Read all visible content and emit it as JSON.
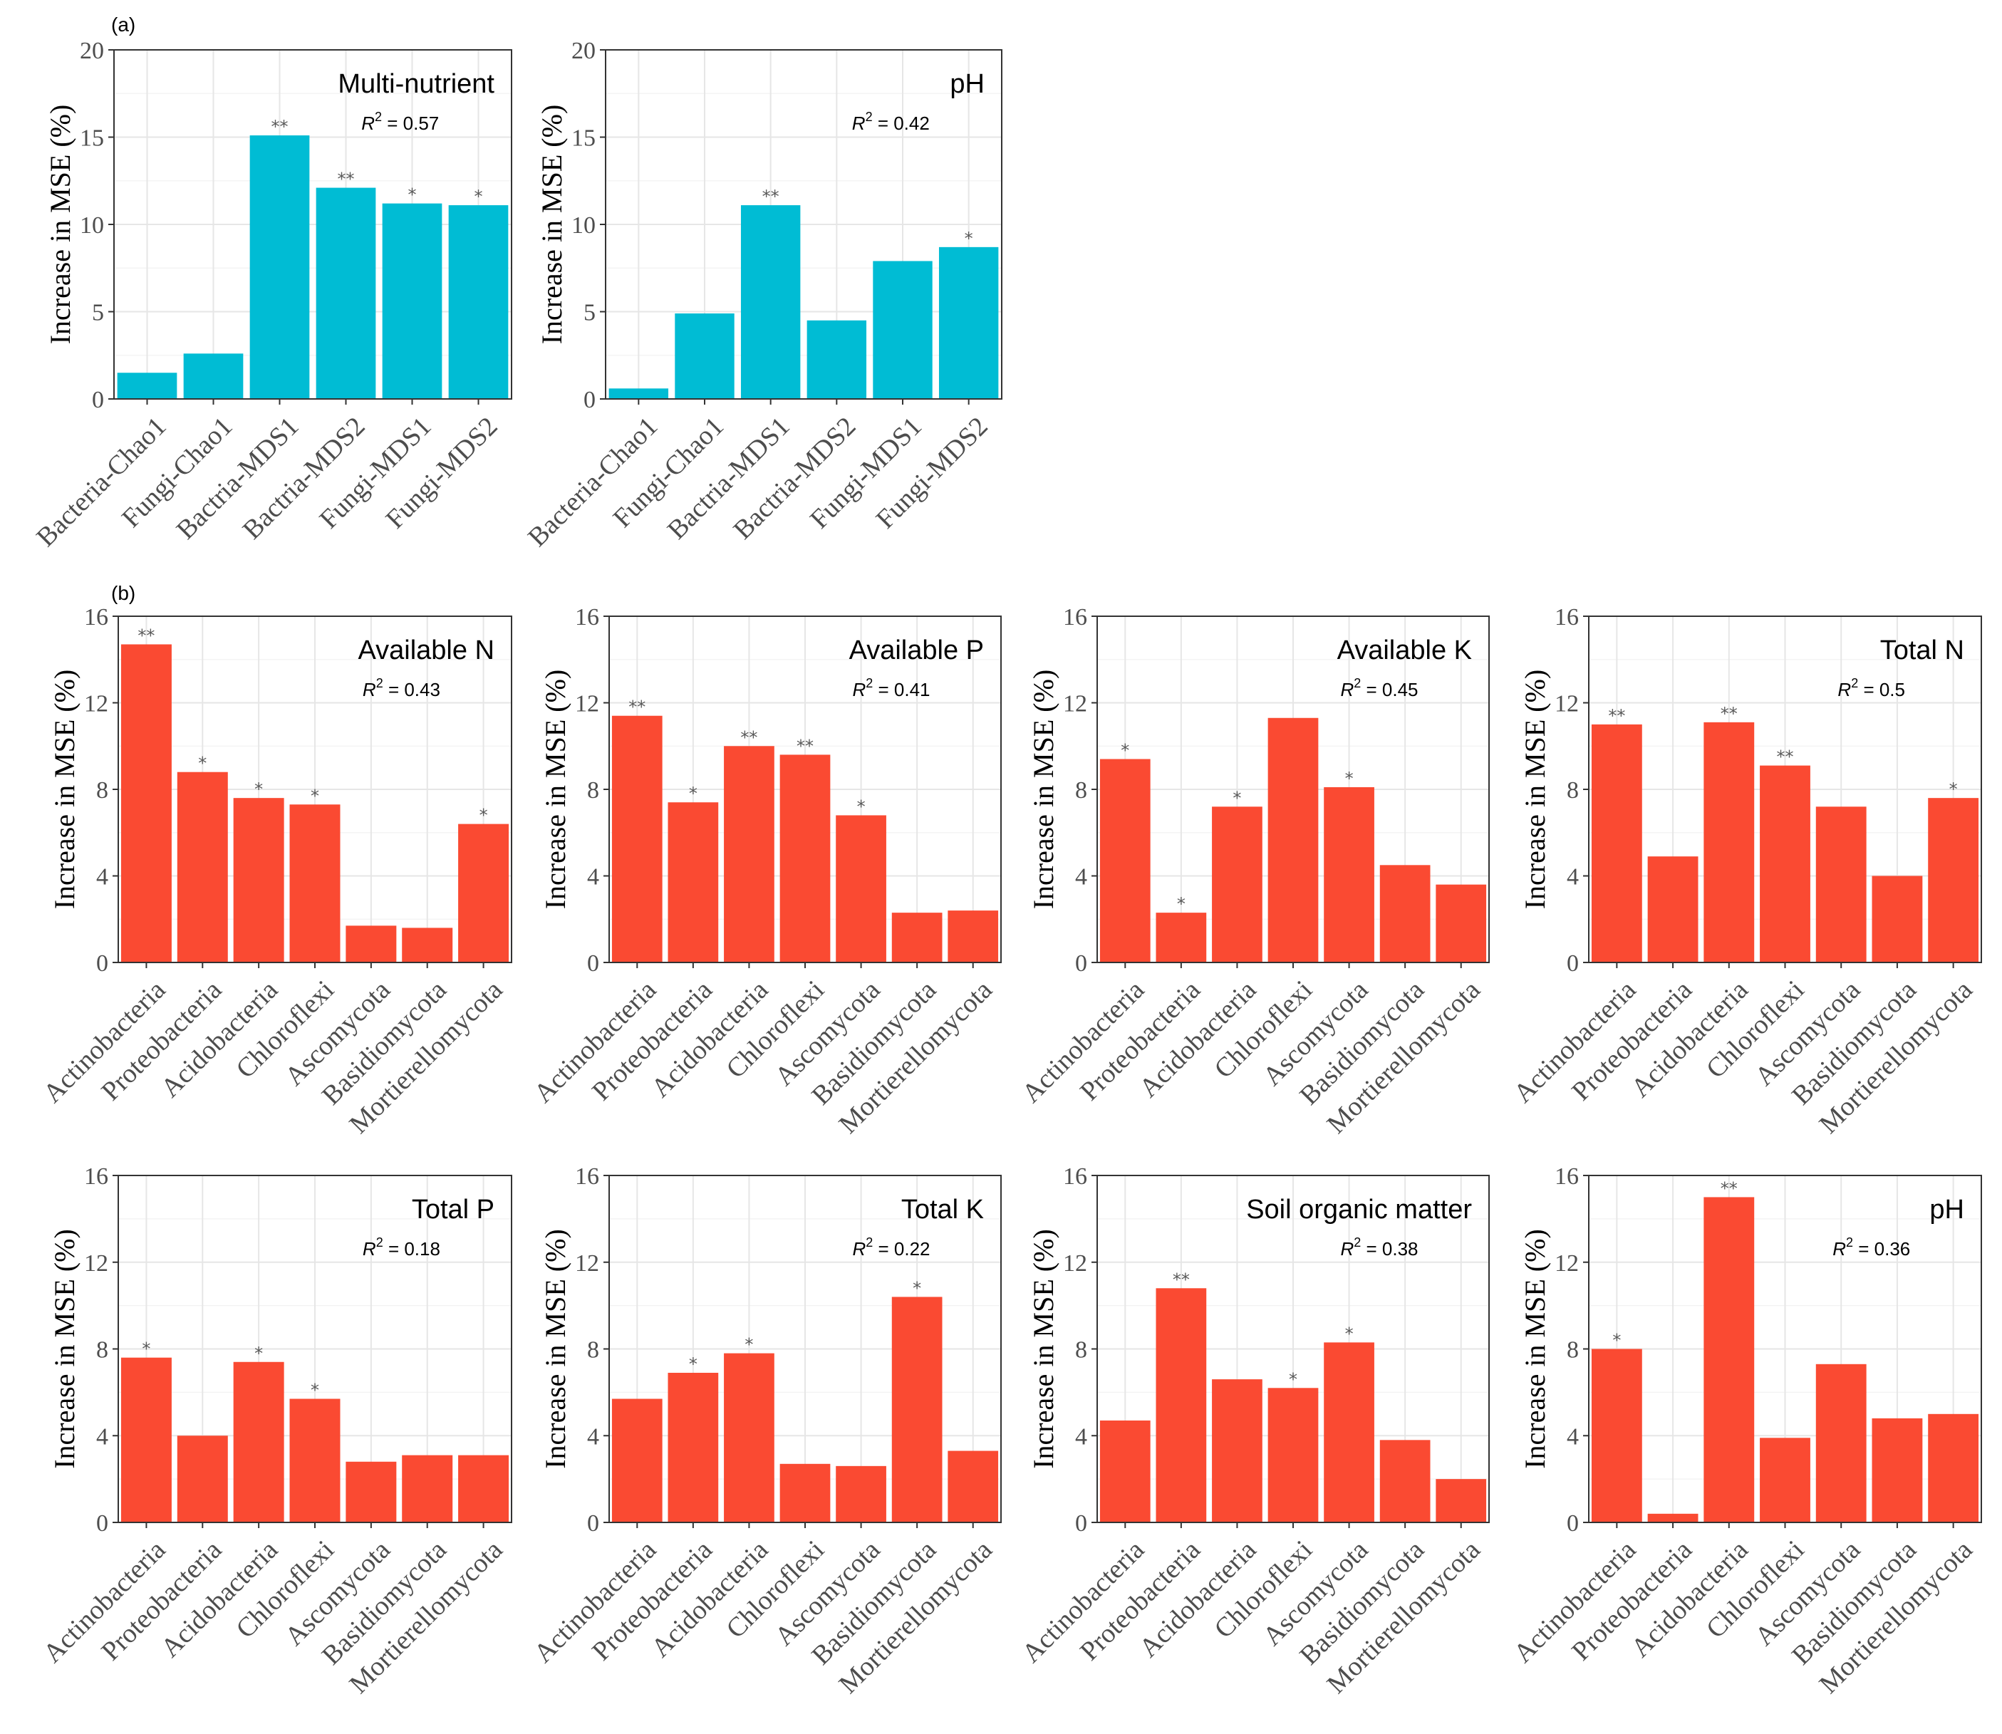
{
  "panel_labels": {
    "a": "(a)",
    "b": "(b)"
  },
  "colors": {
    "a": "#00bcd4",
    "b": "#fa4a32"
  },
  "chart_data": [
    {
      "type": "bar",
      "panel": "a",
      "title": "Multi-nutrient",
      "r2_label": "R",
      "r2_value": "0.57",
      "ylabel": "Increase in MSE (%)",
      "ylim": [
        0,
        20
      ],
      "yticks": [
        0,
        5,
        10,
        15,
        20
      ],
      "categories": [
        "Bacteria-Chao1",
        "Fungi-Chao1",
        "Bactria-MDS1",
        "Bactria-MDS2",
        "Fungi-MDS1",
        "Fungi-MDS2"
      ],
      "values": [
        1.5,
        2.6,
        15.1,
        12.1,
        11.2,
        11.1
      ],
      "significance": [
        "",
        "",
        "**",
        "**",
        "*",
        "*"
      ]
    },
    {
      "type": "bar",
      "panel": "a",
      "title": "pH",
      "r2_label": "R",
      "r2_value": "0.42",
      "ylabel": "Increase in MSE (%)",
      "ylim": [
        0,
        20
      ],
      "yticks": [
        0,
        5,
        10,
        15,
        20
      ],
      "categories": [
        "Bacteria-Chao1",
        "Fungi-Chao1",
        "Bactria-MDS1",
        "Bactria-MDS2",
        "Fungi-MDS1",
        "Fungi-MDS2"
      ],
      "values": [
        0.6,
        4.9,
        11.1,
        4.5,
        7.9,
        8.7
      ],
      "significance": [
        "",
        "",
        "**",
        "",
        "",
        "*"
      ]
    },
    {
      "type": "bar",
      "panel": "b",
      "title": "Available N",
      "r2_label": "R",
      "r2_value": "0.43",
      "ylabel": "Increase in MSE (%)",
      "ylim": [
        0,
        16
      ],
      "yticks": [
        0,
        4,
        8,
        12,
        16
      ],
      "categories": [
        "Actinobacteria",
        "Proteobacteria",
        "Acidobacteria",
        "Chloroflexi",
        "Ascomycota",
        "Basidiomycota",
        "Mortierellomycota"
      ],
      "values": [
        14.7,
        8.8,
        7.6,
        7.3,
        1.7,
        1.6,
        6.4
      ],
      "significance": [
        "**",
        "*",
        "*",
        "*",
        "",
        "",
        "*"
      ]
    },
    {
      "type": "bar",
      "panel": "b",
      "title": "Available P",
      "r2_label": "R",
      "r2_value": "0.41",
      "ylabel": "Increase in MSE (%)",
      "ylim": [
        0,
        16
      ],
      "yticks": [
        0,
        4,
        8,
        12,
        16
      ],
      "categories": [
        "Actinobacteria",
        "Proteobacteria",
        "Acidobacteria",
        "Chloroflexi",
        "Ascomycota",
        "Basidiomycota",
        "Mortierellomycota"
      ],
      "values": [
        11.4,
        7.4,
        10.0,
        9.6,
        6.8,
        2.3,
        2.4
      ],
      "significance": [
        "**",
        "*",
        "**",
        "**",
        "*",
        "",
        ""
      ]
    },
    {
      "type": "bar",
      "panel": "b",
      "title": "Available K",
      "r2_label": "R",
      "r2_value": "0.45",
      "ylabel": "Increase in MSE (%)",
      "ylim": [
        0,
        16
      ],
      "yticks": [
        0,
        4,
        8,
        12,
        16
      ],
      "categories": [
        "Actinobacteria",
        "Proteobacteria",
        "Acidobacteria",
        "Chloroflexi",
        "Ascomycota",
        "Basidiomycota",
        "Mortierellomycota"
      ],
      "values": [
        9.4,
        2.3,
        7.2,
        11.3,
        8.1,
        4.5,
        3.6
      ],
      "significance": [
        "*",
        "*",
        "*",
        "",
        "*",
        "",
        ""
      ]
    },
    {
      "type": "bar",
      "panel": "b",
      "title": "Total N",
      "r2_label": "R",
      "r2_value": "0.5",
      "ylabel": "Increase in MSE (%)",
      "ylim": [
        0,
        16
      ],
      "yticks": [
        0,
        4,
        8,
        12,
        16
      ],
      "categories": [
        "Actinobacteria",
        "Proteobacteria",
        "Acidobacteria",
        "Chloroflexi",
        "Ascomycota",
        "Basidiomycota",
        "Mortierellomycota"
      ],
      "values": [
        11.0,
        4.9,
        11.1,
        9.1,
        7.2,
        4.0,
        7.6
      ],
      "significance": [
        "**",
        "",
        "**",
        "**",
        "",
        "",
        "*"
      ]
    },
    {
      "type": "bar",
      "panel": "b",
      "title": "Total P",
      "r2_label": "R",
      "r2_value": "0.18",
      "ylabel": "Increase in MSE (%)",
      "ylim": [
        0,
        16
      ],
      "yticks": [
        0,
        4,
        8,
        12,
        16
      ],
      "categories": [
        "Actinobacteria",
        "Proteobacteria",
        "Acidobacteria",
        "Chloroflexi",
        "Ascomycota",
        "Basidiomycota",
        "Mortierellomycota"
      ],
      "values": [
        7.6,
        4.0,
        7.4,
        5.7,
        2.8,
        3.1,
        3.1
      ],
      "significance": [
        "*",
        "",
        "*",
        "*",
        "",
        "",
        ""
      ]
    },
    {
      "type": "bar",
      "panel": "b",
      "title": "Total K",
      "r2_label": "R",
      "r2_value": "0.22",
      "ylabel": "Increase in MSE (%)",
      "ylim": [
        0,
        16
      ],
      "yticks": [
        0,
        4,
        8,
        12,
        16
      ],
      "categories": [
        "Actinobacteria",
        "Proteobacteria",
        "Acidobacteria",
        "Chloroflexi",
        "Ascomycota",
        "Basidiomycota",
        "Mortierellomycota"
      ],
      "values": [
        5.7,
        6.9,
        7.8,
        2.7,
        2.6,
        10.4,
        3.3
      ],
      "significance": [
        "",
        "*",
        "*",
        "",
        "",
        "*",
        ""
      ]
    },
    {
      "type": "bar",
      "panel": "b",
      "title": "Soil organic matter",
      "r2_label": "R",
      "r2_value": "0.38",
      "ylabel": "Increase in MSE (%)",
      "ylim": [
        0,
        16
      ],
      "yticks": [
        0,
        4,
        8,
        12,
        16
      ],
      "categories": [
        "Actinobacteria",
        "Proteobacteria",
        "Acidobacteria",
        "Chloroflexi",
        "Ascomycota",
        "Basidiomycota",
        "Mortierellomycota"
      ],
      "values": [
        4.7,
        10.8,
        6.6,
        6.2,
        8.3,
        3.8,
        2.0
      ],
      "significance": [
        "",
        "**",
        "",
        "*",
        "*",
        "",
        ""
      ]
    },
    {
      "type": "bar",
      "panel": "b",
      "title": "pH",
      "r2_label": "R",
      "r2_value": "0.36",
      "ylabel": "Increase in MSE (%)",
      "ylim": [
        0,
        16
      ],
      "yticks": [
        0,
        4,
        8,
        12,
        16
      ],
      "categories": [
        "Actinobacteria",
        "Proteobacteria",
        "Acidobacteria",
        "Chloroflexi",
        "Ascomycota",
        "Basidiomycota",
        "Mortierellomycota"
      ],
      "values": [
        8.0,
        0.4,
        15.0,
        3.9,
        7.3,
        4.8,
        5.0
      ],
      "significance": [
        "*",
        "",
        "**",
        "",
        "",
        "",
        ""
      ]
    }
  ]
}
